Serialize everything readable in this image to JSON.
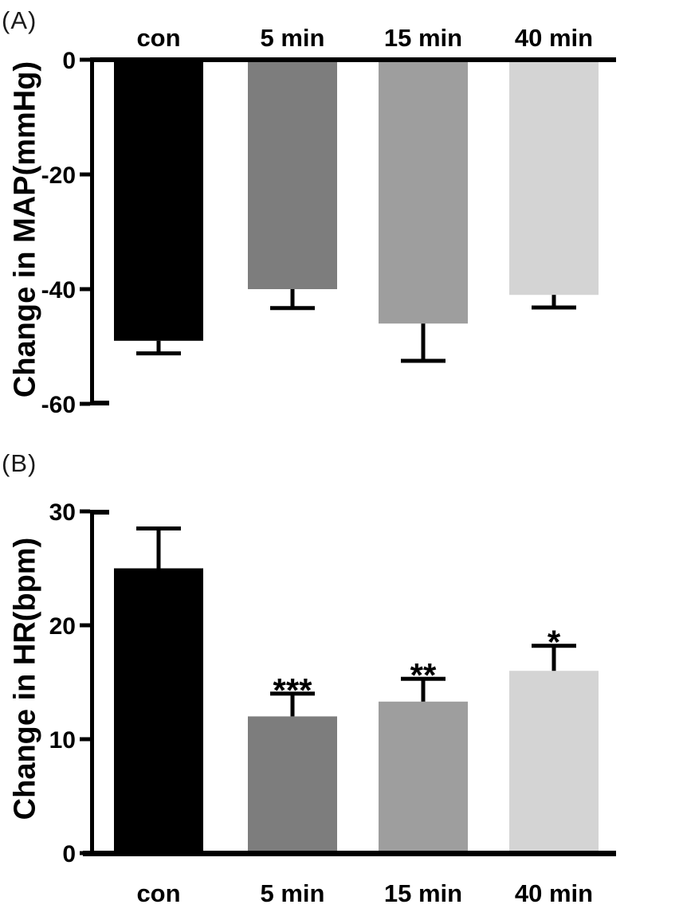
{
  "figure": {
    "background_color": "#ffffff",
    "axis_color": "#000000",
    "text_color": "#000000"
  },
  "chart_data": [
    {
      "panel_label": "(A)",
      "type": "bar",
      "title": "",
      "ylabel": "Change in MAP(mmHg)",
      "xlabel": "",
      "categories": [
        "con",
        "5 min",
        "15 min",
        "40 min"
      ],
      "values": [
        -49,
        -40,
        -46,
        -41
      ],
      "errors": [
        2.2,
        3.3,
        6.5,
        2.2
      ],
      "significance": [
        "",
        "",
        "",
        ""
      ],
      "yticks": [
        0,
        -20,
        -40,
        -60
      ],
      "ylim": [
        -60,
        0
      ],
      "bar_colors": [
        "#000000",
        "#7d7d7d",
        "#9e9e9e",
        "#d4d4d4"
      ],
      "category_label_position": "top",
      "error_direction": "down",
      "grid": "off",
      "legend": "none"
    },
    {
      "panel_label": "(B)",
      "type": "bar",
      "title": "",
      "ylabel": "Change in HR(bpm)",
      "xlabel": "",
      "categories": [
        "con",
        "5 min",
        "15 min",
        "40 min"
      ],
      "values": [
        25,
        12,
        13.3,
        16
      ],
      "errors": [
        3.5,
        2.0,
        2.0,
        2.2
      ],
      "significance": [
        "",
        "***",
        "**",
        "*"
      ],
      "yticks": [
        30,
        20,
        10,
        0
      ],
      "ylim": [
        0,
        30
      ],
      "bar_colors": [
        "#000000",
        "#7d7d7d",
        "#9e9e9e",
        "#d4d4d4"
      ],
      "category_label_position": "bottom",
      "error_direction": "up",
      "grid": "off",
      "legend": "none"
    }
  ]
}
